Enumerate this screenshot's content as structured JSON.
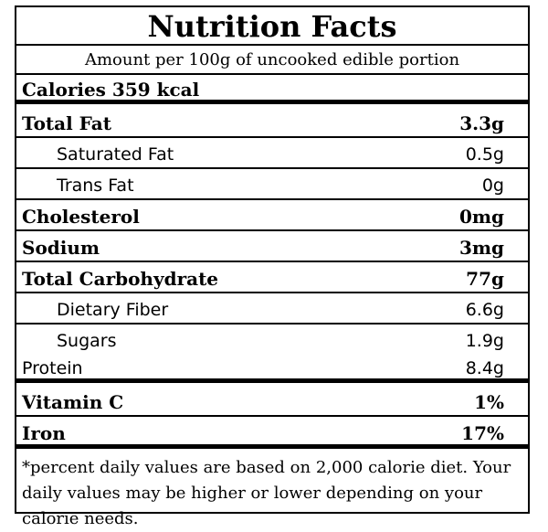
{
  "label": {
    "title": "Nutrition Facts",
    "amount": "Amount per 100g of uncooked edible portion",
    "calories": "Calories 359 kcal",
    "rows": [
      {
        "name": "Total Fat",
        "value": "3.3g"
      },
      {
        "name": "Saturated Fat",
        "value": "0.5g"
      },
      {
        "name": "Trans Fat",
        "value": "0g"
      },
      {
        "name": "Cholesterol",
        "value": "0mg"
      },
      {
        "name": "Sodium",
        "value": "3mg"
      },
      {
        "name": "Total Carbohydrate",
        "value": "77g"
      },
      {
        "name": "Dietary Fiber",
        "value": "6.6g"
      },
      {
        "name": "Sugars",
        "value": "1.9g"
      },
      {
        "name": "Protein",
        "value": "8.4g"
      },
      {
        "name": "Vitamin C",
        "value": "1%"
      },
      {
        "name": "Iron",
        "value": "17%"
      }
    ],
    "footnote": "*percent daily values are based on 2,000 calorie diet. Your daily values may be higher or lower depending on your calorie needs."
  }
}
